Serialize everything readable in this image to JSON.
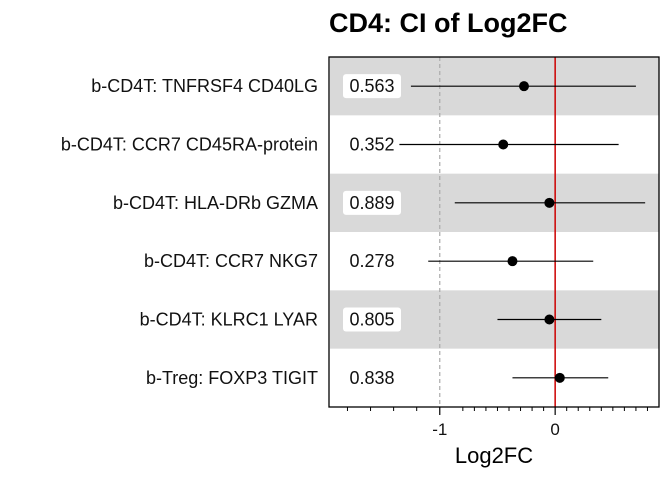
{
  "chart_data": {
    "type": "scatter",
    "title": "CD4: CI of Log2FC",
    "xlabel": "Log2FC",
    "xlim": [
      -1.96,
      0.9
    ],
    "x_ticks": [
      -1,
      0
    ],
    "x_tick_labels": [
      "-1",
      "0"
    ],
    "x_axis_scale": "symlog",
    "reference_lines": [
      {
        "x": 0,
        "color": "#cc0000",
        "style": "solid"
      },
      {
        "x": -1,
        "color": "#aaaaaa",
        "style": "dashed"
      }
    ],
    "row_shading": "alternating gray bands",
    "rows": [
      {
        "label": "b-CD4T: TNFRSF4 CD40LG",
        "p_value": "0.563",
        "estimate": -0.27,
        "ci_low": -1.25,
        "ci_high": 0.7
      },
      {
        "label": "b-CD4T: CCR7 CD45RA-protein",
        "p_value": "0.352",
        "estimate": -0.45,
        "ci_low": -1.35,
        "ci_high": 0.55
      },
      {
        "label": "b-CD4T: HLA-DRb GZMA",
        "p_value": "0.889",
        "estimate": -0.05,
        "ci_low": -0.87,
        "ci_high": 0.78
      },
      {
        "label": "b-CD4T: CCR7 NKG7",
        "p_value": "0.278",
        "estimate": -0.37,
        "ci_low": -1.1,
        "ci_high": 0.33
      },
      {
        "label": "b-CD4T: KLRC1 LYAR",
        "p_value": "0.805",
        "estimate": -0.05,
        "ci_low": -0.5,
        "ci_high": 0.4
      },
      {
        "label": "b-Treg: FOXP3 TIGIT",
        "p_value": "0.838",
        "estimate": 0.04,
        "ci_low": -0.37,
        "ci_high": 0.46
      }
    ]
  }
}
